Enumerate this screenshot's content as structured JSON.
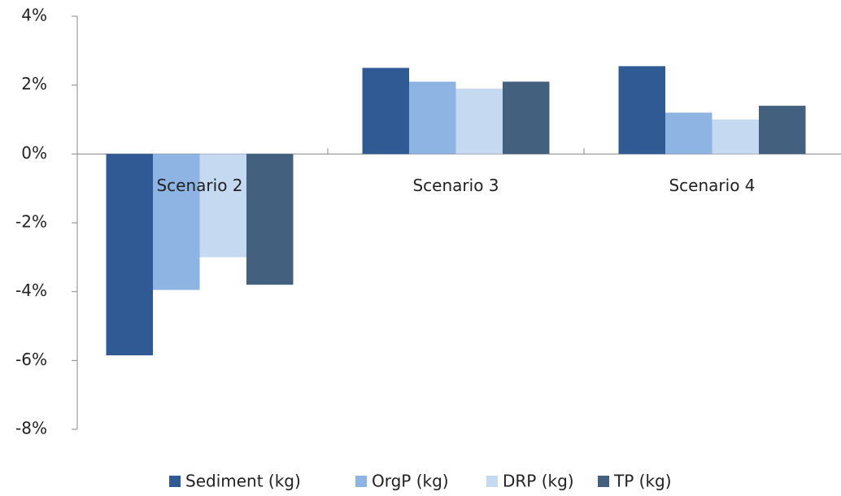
{
  "chart_data": {
    "type": "bar",
    "categories": [
      "Scenario 2",
      "Scenario 3",
      "Scenario 4"
    ],
    "series": [
      {
        "name": "Sediment (kg)",
        "color": "#2f5a93",
        "values": [
          -5.85,
          2.5,
          2.55
        ]
      },
      {
        "name": "OrgP (kg)",
        "color": "#8db4e2",
        "values": [
          -3.95,
          2.1,
          1.2
        ]
      },
      {
        "name": "DRP (kg)",
        "color": "#c5d9f1",
        "values": [
          -3.0,
          1.9,
          1.0
        ]
      },
      {
        "name": "TP (kg)",
        "color": "#44607f",
        "values": [
          -3.8,
          2.1,
          1.4
        ]
      }
    ],
    "ylim": [
      -8,
      4
    ],
    "yticks": [
      {
        "value": 4,
        "label": "4%"
      },
      {
        "value": 2,
        "label": "2%"
      },
      {
        "value": 0,
        "label": "0%"
      },
      {
        "value": -2,
        "label": "-2%"
      },
      {
        "value": -4,
        "label": "-4%"
      },
      {
        "value": -6,
        "label": "-6%"
      },
      {
        "value": -8,
        "label": "-8%"
      }
    ],
    "legend": "bottom"
  }
}
